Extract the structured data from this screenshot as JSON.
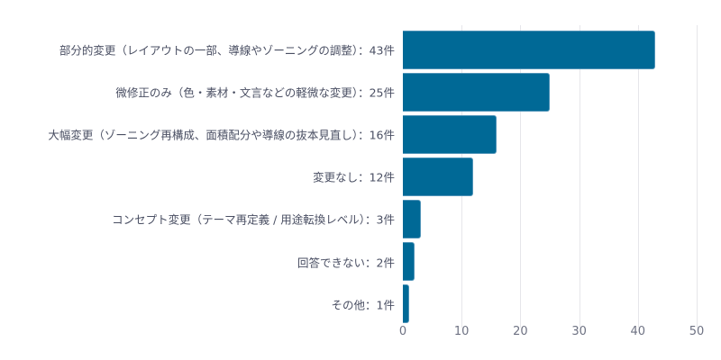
{
  "chart_data": {
    "type": "bar",
    "orientation": "horizontal",
    "title": "",
    "xlabel": "",
    "ylabel": "",
    "xlim": [
      0,
      50
    ],
    "grid": true,
    "bar_color": "#006996",
    "categories": [
      "部分的変更（レイアウトの一部、導線やゾーニングの調整）：43件",
      "微修正のみ（色・素材・文言などの軽微な変更）：25件",
      "大幅変更（ゾーニング再構成、面積配分や導線の抜本見直し）：16件",
      "変更なし：12件",
      "コンセプト変更（テーマ再定義 / 用途転換レベル）：3件",
      "回答できない：2件",
      "その他：1件"
    ],
    "values": [
      43,
      25,
      16,
      12,
      3,
      2,
      1
    ],
    "x_ticks": [
      "0",
      "10",
      "20",
      "30",
      "40",
      "50"
    ]
  }
}
